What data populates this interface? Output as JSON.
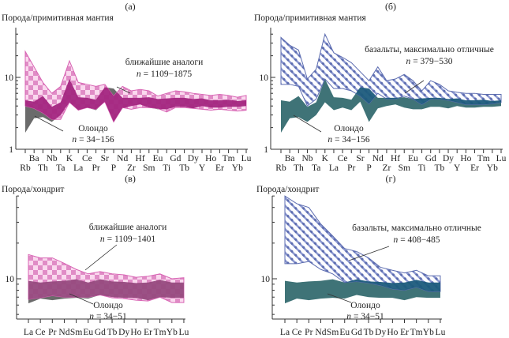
{
  "chart_data": [
    {
      "panel": "(а)",
      "type": "area",
      "ylabel": "Порода/примитивная мантия",
      "yscale": "log",
      "ylim": [
        1,
        50
      ],
      "ytick_labels": [
        "1",
        "10"
      ],
      "categories": [
        "Rb",
        "Ba",
        "Th",
        "Nb",
        "Ta",
        "K",
        "La",
        "Ce",
        "Pr",
        "Sr",
        "P",
        "Nd",
        "Zr",
        "Hf",
        "Sm",
        "Eu",
        "Ti",
        "Gd",
        "Tb",
        "Dy",
        "Y",
        "Ho",
        "Er",
        "Tm",
        "Yb",
        "Lu"
      ],
      "series": [
        {
          "name": "Олондо",
          "n_symbol": "n",
          "n_value": "= 34−156",
          "color": "#6b6b6b",
          "upper": [
            4.8,
            4.6,
            5.5,
            3.9,
            4.5,
            9.5,
            5.3,
            5.2,
            4.9,
            7.3,
            7.0,
            5.2,
            5.2,
            5.2,
            5.3,
            5.0,
            5.1,
            5.2,
            5.2,
            5.0,
            5.1,
            4.8,
            4.8,
            4.9,
            4.7,
            4.8
          ],
          "lower": [
            1.7,
            2.7,
            2.8,
            2.4,
            3.0,
            4.5,
            3.5,
            3.8,
            3.5,
            4.6,
            2.4,
            3.7,
            4.0,
            4.2,
            3.8,
            3.6,
            3.6,
            3.9,
            3.9,
            3.7,
            4.0,
            3.8,
            3.8,
            3.9,
            3.9,
            4.0
          ]
        },
        {
          "name": "ближайшие аналоги",
          "n_symbol": "n",
          "n_value": "= 1109−1875",
          "color": "#e07cc0",
          "upper": [
            23,
            14,
            8.5,
            6,
            7.5,
            17,
            8.5,
            8,
            7.5,
            8,
            5.5,
            7.5,
            6.5,
            6.8,
            6.5,
            5.5,
            6,
            6.5,
            6.3,
            6,
            5.8,
            5.6,
            5.8,
            5.6,
            5.3,
            5.6
          ],
          "lower": [
            4,
            3.7,
            3.2,
            2.6,
            2.6,
            4.5,
            3.5,
            3.8,
            3.6,
            4.6,
            2.4,
            3.8,
            3.6,
            3.8,
            3.8,
            3.7,
            3.3,
            3.8,
            3.8,
            3.7,
            3.6,
            3.5,
            3.6,
            3.5,
            3.4,
            3.5
          ]
        }
      ],
      "overlap_color": "#a3267f"
    },
    {
      "panel": "(б)",
      "type": "area",
      "ylabel": "Порода/примитивная мантия",
      "yscale": "log",
      "ylim": [
        1,
        50
      ],
      "ytick_labels": [
        "1",
        "10"
      ],
      "categories": [
        "Rb",
        "Ba",
        "Th",
        "Nb",
        "Ta",
        "K",
        "La",
        "Ce",
        "Pr",
        "Sr",
        "P",
        "Nd",
        "Zr",
        "Hf",
        "Sm",
        "Eu",
        "Ti",
        "Gd",
        "Tb",
        "Dy",
        "Y",
        "Ho",
        "Er",
        "Tm",
        "Yb",
        "Lu"
      ],
      "series": [
        {
          "name": "Олондо",
          "n_symbol": "n",
          "n_value": "= 34−156",
          "color": "#3f7377",
          "upper": [
            4.8,
            4.6,
            5.5,
            3.9,
            4.5,
            9.5,
            5.3,
            5.2,
            4.9,
            7.3,
            7.0,
            5.2,
            5.2,
            5.2,
            5.3,
            5.0,
            5.1,
            5.2,
            5.2,
            5.0,
            5.1,
            4.8,
            4.8,
            4.9,
            4.7,
            4.8
          ],
          "lower": [
            1.7,
            2.7,
            2.8,
            2.4,
            3.0,
            4.5,
            3.5,
            3.8,
            3.5,
            4.6,
            2.4,
            3.7,
            4.0,
            4.2,
            3.8,
            3.6,
            3.6,
            3.9,
            3.9,
            3.7,
            4.0,
            3.8,
            3.8,
            3.9,
            3.9,
            4.0
          ]
        },
        {
          "name": "базальты, максимально отличные",
          "n_symbol": "n",
          "n_value": "= 379−530",
          "color": "#5d6db0",
          "upper": [
            36,
            28,
            24,
            9.5,
            13,
            40,
            22,
            19,
            16,
            12,
            9,
            14,
            9,
            9.5,
            11,
            9,
            6.5,
            9,
            8,
            6.5,
            6.2,
            6,
            6,
            5.8,
            5.8,
            5.8
          ],
          "lower": [
            8,
            8,
            7.5,
            4,
            5,
            9.5,
            7,
            7,
            6.5,
            5.5,
            4.3,
            6,
            5,
            5,
            5.5,
            5,
            4.2,
            5,
            5,
            4.8,
            4.5,
            4.2,
            4.2,
            4.2,
            4.3,
            4.5
          ]
        }
      ],
      "overlap_color": "#1c5b7c"
    },
    {
      "panel": "(в)",
      "type": "area",
      "ylabel": "Порода/хондрит",
      "yscale": "log",
      "ylim": [
        4.6,
        50
      ],
      "ytick_labels": [
        "10"
      ],
      "categories": [
        "La",
        "Ce",
        "Pr",
        "Nd",
        "Sm",
        "Eu",
        "Gd",
        "Tb",
        "Dy",
        "Ho",
        "Er",
        "Tm",
        "Yb",
        "Lu"
      ],
      "series": [
        {
          "name": "Олондо",
          "n_symbol": "n",
          "n_value": "= 34−51",
          "color": "#6b6b6b",
          "upper": [
            9.6,
            9.3,
            9.5,
            9.6,
            9.9,
            9.3,
            9.9,
            9.5,
            9.4,
            9.2,
            9.3,
            9.8,
            9.3,
            9.3
          ],
          "lower": [
            6.2,
            6.8,
            6.6,
            6.8,
            6.9,
            6.8,
            7.3,
            7.0,
            6.9,
            6.9,
            6.6,
            7.0,
            6.9,
            6.9
          ]
        },
        {
          "name": "ближайшие аналоги",
          "n_symbol": "n",
          "n_value": "= 1109−1401",
          "color": "#e07cc0",
          "upper": [
            16,
            15,
            15,
            13.5,
            12,
            11,
            11.5,
            11,
            10.8,
            10.3,
            10.5,
            11,
            10,
            10.2
          ],
          "lower": [
            6.7,
            6.9,
            7.2,
            7.0,
            7.0,
            7.0,
            7.3,
            6.9,
            6.8,
            6.6,
            6.5,
            7.0,
            6.3,
            6.3
          ]
        }
      ],
      "overlap_color": "#964a7e"
    },
    {
      "panel": "(г)",
      "type": "area",
      "ylabel": "Порода/хондрит",
      "yscale": "log",
      "ylim": [
        4.6,
        50
      ],
      "ytick_labels": [
        "10"
      ],
      "categories": [
        "La",
        "Ce",
        "Pr",
        "Nd",
        "Sm",
        "Eu",
        "Gd",
        "Tb",
        "Dy",
        "Ho",
        "Er",
        "Tm",
        "Yb",
        "Lu"
      ],
      "series": [
        {
          "name": "Олондо",
          "n_symbol": "n",
          "n_value": "= 34−51",
          "color": "#3f7377",
          "upper": [
            9.6,
            9.3,
            9.5,
            9.6,
            9.9,
            9.3,
            9.9,
            9.5,
            9.4,
            9.2,
            9.3,
            9.8,
            9.3,
            9.3
          ],
          "lower": [
            6.2,
            6.8,
            6.6,
            6.8,
            6.9,
            6.8,
            7.3,
            7.0,
            6.9,
            6.9,
            6.6,
            7.0,
            6.9,
            6.9
          ]
        },
        {
          "name": "базальты, максимально отличные",
          "n_symbol": "n",
          "n_value": "= 408−485",
          "color": "#5d6db0",
          "upper": [
            50,
            43,
            40,
            29,
            23,
            18,
            17,
            15,
            12.5,
            11.8,
            11.2,
            11.8,
            10.6,
            10.6
          ],
          "lower": [
            13.4,
            13.4,
            14,
            12,
            11,
            9.3,
            9.5,
            9.2,
            8.8,
            8.2,
            8,
            8.5,
            7.8,
            7.8
          ]
        }
      ],
      "overlap_color": "#1c5b7c"
    }
  ]
}
